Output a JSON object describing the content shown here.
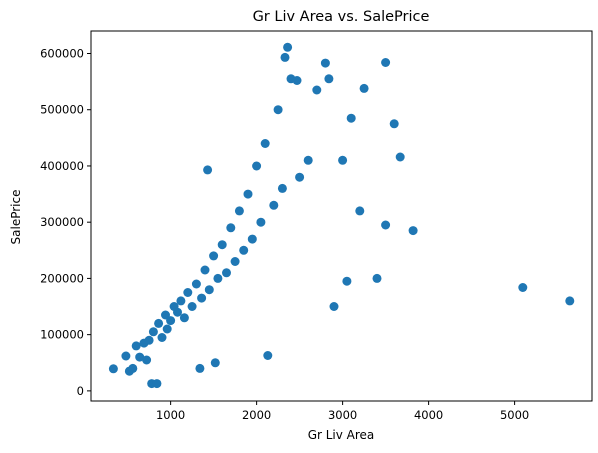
{
  "chart_data": {
    "type": "scatter",
    "title": "Gr Liv Area vs. SalePrice",
    "xlabel": "Gr Liv Area",
    "ylabel": "SalePrice",
    "xlim": [
      74,
      5900
    ],
    "ylim": [
      -18000,
      640000
    ],
    "x_ticks": [
      1000,
      2000,
      3000,
      4000,
      5000
    ],
    "x_tick_labels": [
      "1000",
      "2000",
      "3000",
      "4000",
      "5000"
    ],
    "y_ticks": [
      0,
      100000,
      200000,
      300000,
      400000,
      500000,
      600000
    ],
    "y_tick_labels": [
      "0",
      "100000",
      "200000",
      "300000",
      "400000",
      "500000",
      "600000"
    ],
    "grid": false,
    "marker_color": "#1f77b4",
    "points": [
      {
        "x": 334,
        "y": 39300
      },
      {
        "x": 480,
        "y": 62000
      },
      {
        "x": 520,
        "y": 35000
      },
      {
        "x": 560,
        "y": 40000
      },
      {
        "x": 600,
        "y": 80000
      },
      {
        "x": 640,
        "y": 60000
      },
      {
        "x": 690,
        "y": 85000
      },
      {
        "x": 720,
        "y": 55000
      },
      {
        "x": 750,
        "y": 90000
      },
      {
        "x": 780,
        "y": 13000
      },
      {
        "x": 800,
        "y": 105000
      },
      {
        "x": 840,
        "y": 13000
      },
      {
        "x": 860,
        "y": 120000
      },
      {
        "x": 900,
        "y": 95000
      },
      {
        "x": 940,
        "y": 135000
      },
      {
        "x": 960,
        "y": 110000
      },
      {
        "x": 1000,
        "y": 125000
      },
      {
        "x": 1040,
        "y": 150000
      },
      {
        "x": 1080,
        "y": 140000
      },
      {
        "x": 1120,
        "y": 160000
      },
      {
        "x": 1160,
        "y": 130000
      },
      {
        "x": 1200,
        "y": 175000
      },
      {
        "x": 1250,
        "y": 150000
      },
      {
        "x": 1300,
        "y": 190000
      },
      {
        "x": 1340,
        "y": 40000
      },
      {
        "x": 1360,
        "y": 165000
      },
      {
        "x": 1400,
        "y": 215000
      },
      {
        "x": 1430,
        "y": 393000
      },
      {
        "x": 1450,
        "y": 180000
      },
      {
        "x": 1500,
        "y": 240000
      },
      {
        "x": 1520,
        "y": 50000
      },
      {
        "x": 1550,
        "y": 200000
      },
      {
        "x": 1600,
        "y": 260000
      },
      {
        "x": 1650,
        "y": 210000
      },
      {
        "x": 1700,
        "y": 290000
      },
      {
        "x": 1750,
        "y": 230000
      },
      {
        "x": 1800,
        "y": 320000
      },
      {
        "x": 1850,
        "y": 250000
      },
      {
        "x": 1900,
        "y": 350000
      },
      {
        "x": 1950,
        "y": 270000
      },
      {
        "x": 2000,
        "y": 400000
      },
      {
        "x": 2050,
        "y": 300000
      },
      {
        "x": 2100,
        "y": 440000
      },
      {
        "x": 2130,
        "y": 63000
      },
      {
        "x": 2200,
        "y": 330000
      },
      {
        "x": 2250,
        "y": 500000
      },
      {
        "x": 2300,
        "y": 360000
      },
      {
        "x": 2330,
        "y": 593000
      },
      {
        "x": 2360,
        "y": 611000
      },
      {
        "x": 2400,
        "y": 555000
      },
      {
        "x": 2470,
        "y": 552000
      },
      {
        "x": 2500,
        "y": 380000
      },
      {
        "x": 2600,
        "y": 410000
      },
      {
        "x": 2700,
        "y": 535000
      },
      {
        "x": 2800,
        "y": 583000
      },
      {
        "x": 2840,
        "y": 555000
      },
      {
        "x": 2900,
        "y": 150000
      },
      {
        "x": 3000,
        "y": 410000
      },
      {
        "x": 3050,
        "y": 195000
      },
      {
        "x": 3100,
        "y": 485000
      },
      {
        "x": 3200,
        "y": 320000
      },
      {
        "x": 3250,
        "y": 538000
      },
      {
        "x": 3400,
        "y": 200000
      },
      {
        "x": 3500,
        "y": 584000
      },
      {
        "x": 3500,
        "y": 295000
      },
      {
        "x": 3600,
        "y": 475000
      },
      {
        "x": 3670,
        "y": 416000
      },
      {
        "x": 3820,
        "y": 285000
      },
      {
        "x": 5095,
        "y": 183850
      },
      {
        "x": 5642,
        "y": 160000
      }
    ]
  }
}
